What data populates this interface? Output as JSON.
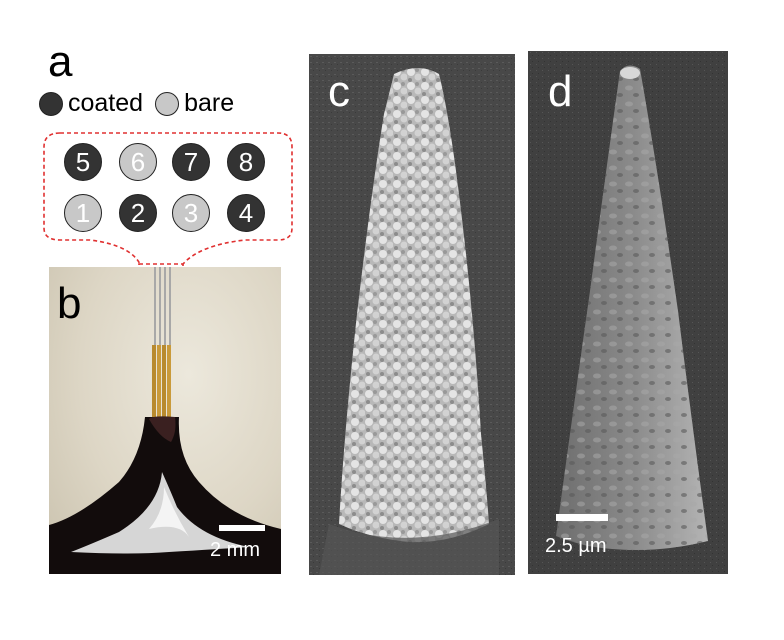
{
  "panels": {
    "a": {
      "letter": "a"
    },
    "b": {
      "letter": "b",
      "scale_label": "2 mm"
    },
    "c": {
      "letter": "c"
    },
    "d": {
      "letter": "d",
      "scale_label": "2.5 µm"
    }
  },
  "legend": {
    "coated": {
      "label": "coated",
      "color": "#333333"
    },
    "bare": {
      "label": "bare",
      "color": "#c8c8c8"
    }
  },
  "electrodes": [
    {
      "number": "5",
      "state": "coated"
    },
    {
      "number": "6",
      "state": "bare"
    },
    {
      "number": "7",
      "state": "coated"
    },
    {
      "number": "8",
      "state": "coated"
    },
    {
      "number": "1",
      "state": "bare"
    },
    {
      "number": "2",
      "state": "coated"
    },
    {
      "number": "3",
      "state": "bare"
    },
    {
      "number": "4",
      "state": "coated"
    }
  ],
  "colors": {
    "callout_outline": "#e03030"
  }
}
